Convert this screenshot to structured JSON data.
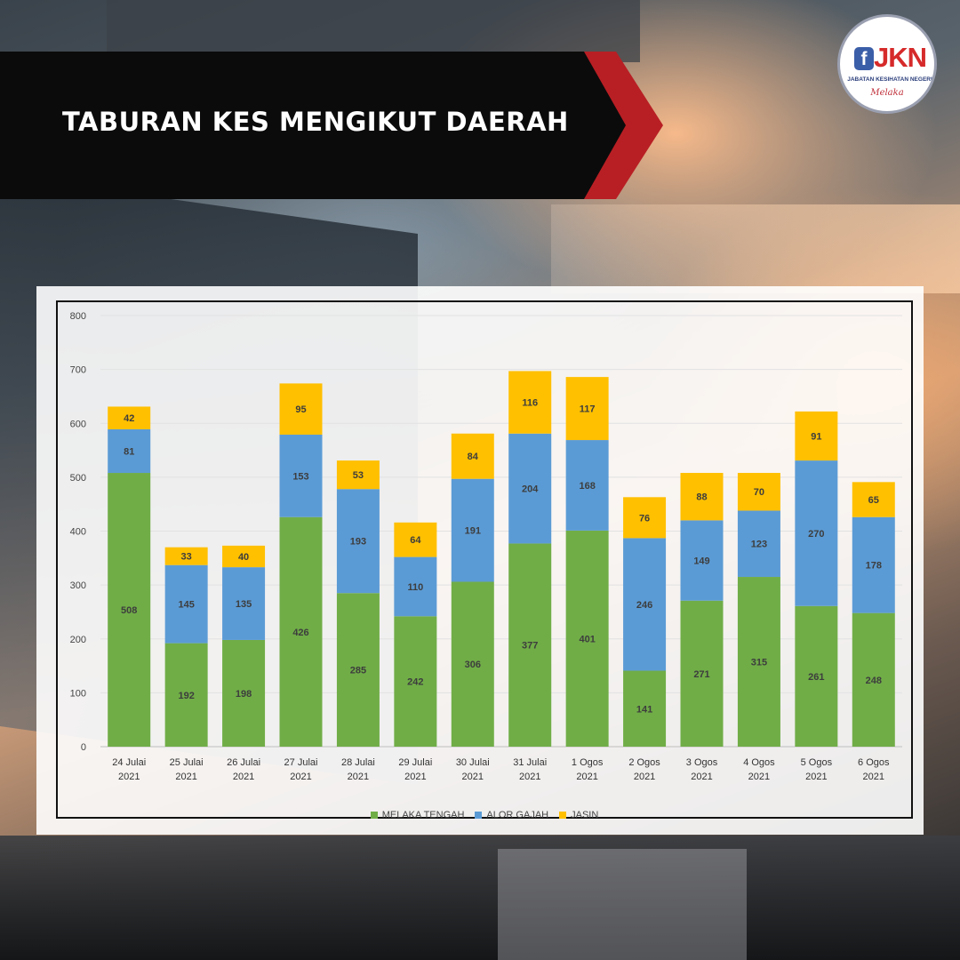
{
  "banner": {
    "title": "TABURAN KES MENGIKUT DAERAH"
  },
  "logo": {
    "f": "f",
    "jkn": "JKN",
    "subtitle": "JABATAN KESIHATAN NEGERI",
    "script": "Melaka"
  },
  "colors": {
    "banner_black": "#0b0b0b",
    "banner_red": "#b81f24",
    "melaka_tengah": "#70ad47",
    "alor_gajah": "#5b9bd5",
    "jasin": "#ffc000"
  },
  "chart_data": {
    "type": "bar",
    "stacked": true,
    "categories": [
      [
        "24 Julai",
        "2021"
      ],
      [
        "25 Julai",
        "2021"
      ],
      [
        "26 Julai",
        "2021"
      ],
      [
        "27 Julai",
        "2021"
      ],
      [
        "28 Julai",
        "2021"
      ],
      [
        "29 Julai",
        "2021"
      ],
      [
        "30 Julai",
        "2021"
      ],
      [
        "31 Julai",
        "2021"
      ],
      [
        "1 Ogos",
        "2021"
      ],
      [
        "2 Ogos",
        "2021"
      ],
      [
        "3 Ogos",
        "2021"
      ],
      [
        "4 Ogos",
        "2021"
      ],
      [
        "5 Ogos",
        "2021"
      ],
      [
        "6 Ogos",
        "2021"
      ]
    ],
    "series": [
      {
        "name": "MELAKA TENGAH",
        "color": "#70ad47",
        "values": [
          508,
          192,
          198,
          426,
          285,
          242,
          306,
          377,
          401,
          141,
          271,
          315,
          261,
          248
        ]
      },
      {
        "name": "ALOR GAJAH",
        "color": "#5b9bd5",
        "values": [
          81,
          145,
          135,
          153,
          193,
          110,
          191,
          204,
          168,
          246,
          149,
          123,
          270,
          178
        ]
      },
      {
        "name": "JASIN",
        "color": "#ffc000",
        "values": [
          42,
          33,
          40,
          95,
          53,
          64,
          84,
          116,
          117,
          76,
          88,
          70,
          91,
          65
        ]
      }
    ],
    "ylim": [
      0,
      800
    ],
    "yticks": [
      0,
      100,
      200,
      300,
      400,
      500,
      600,
      700,
      800
    ],
    "grid": true,
    "legend_position": "bottom"
  }
}
